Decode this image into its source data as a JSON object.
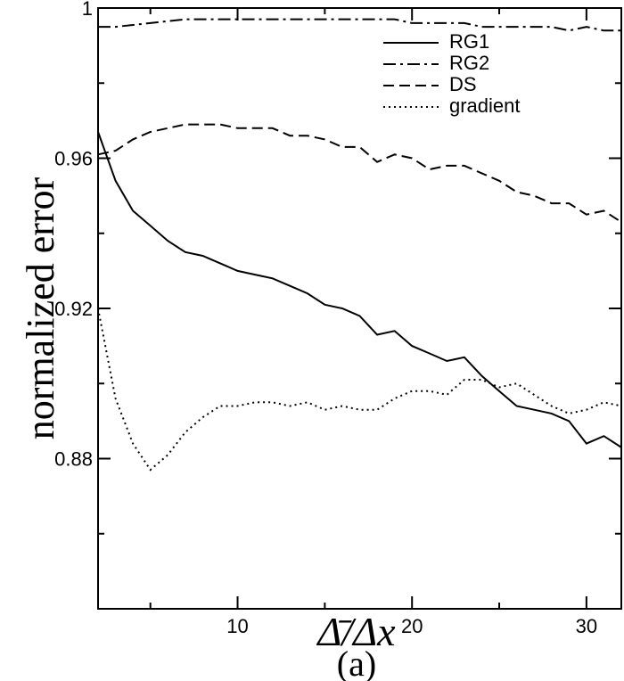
{
  "chart_data": {
    "type": "line",
    "x_label": "Δ̄/Δx",
    "y_label": "normalized error",
    "caption": "(a)",
    "x": [
      2,
      3,
      4,
      5,
      6,
      7,
      8,
      9,
      10,
      11,
      12,
      13,
      14,
      15,
      16,
      17,
      18,
      19,
      20,
      21,
      22,
      23,
      24,
      25,
      26,
      27,
      28,
      29,
      30,
      31,
      32
    ],
    "series": [
      {
        "name": "RG1",
        "color": "#000000",
        "dash": "solid",
        "values": [
          0.967,
          0.954,
          0.946,
          0.942,
          0.938,
          0.935,
          0.934,
          0.932,
          0.93,
          0.929,
          0.928,
          0.926,
          0.924,
          0.921,
          0.92,
          0.918,
          0.913,
          0.914,
          0.91,
          0.908,
          0.906,
          0.907,
          0.902,
          0.898,
          0.894,
          0.893,
          0.892,
          0.89,
          0.884,
          0.886,
          0.883
        ]
      },
      {
        "name": "RG2",
        "color": "#000000",
        "dash": "dashdot",
        "values": [
          0.995,
          0.995,
          0.9955,
          0.996,
          0.9965,
          0.997,
          0.997,
          0.997,
          0.997,
          0.997,
          0.997,
          0.997,
          0.997,
          0.997,
          0.997,
          0.997,
          0.997,
          0.997,
          0.996,
          0.996,
          0.996,
          0.996,
          0.995,
          0.995,
          0.995,
          0.995,
          0.995,
          0.994,
          0.995,
          0.994,
          0.994
        ]
      },
      {
        "name": "DS",
        "color": "#000000",
        "dash": "dashed",
        "values": [
          0.961,
          0.962,
          0.965,
          0.967,
          0.968,
          0.969,
          0.969,
          0.969,
          0.968,
          0.968,
          0.968,
          0.966,
          0.966,
          0.965,
          0.963,
          0.963,
          0.959,
          0.961,
          0.96,
          0.957,
          0.958,
          0.958,
          0.956,
          0.954,
          0.951,
          0.95,
          0.948,
          0.948,
          0.945,
          0.946,
          0.943
        ]
      },
      {
        "name": "gradient",
        "color": "#000000",
        "dash": "dotted",
        "values": [
          0.92,
          0.896,
          0.884,
          0.877,
          0.881,
          0.887,
          0.891,
          0.894,
          0.894,
          0.895,
          0.895,
          0.894,
          0.895,
          0.893,
          0.894,
          0.893,
          0.893,
          0.896,
          0.898,
          0.898,
          0.897,
          0.901,
          0.901,
          0.899,
          0.9,
          0.897,
          0.894,
          0.892,
          0.893,
          0.895,
          0.894
        ]
      }
    ],
    "xlim": [
      2,
      32
    ],
    "ylim": [
      0.84,
      1
    ],
    "xticks": [
      10,
      20,
      30
    ],
    "xminorticks": [
      5,
      15,
      25
    ],
    "yticks": [
      0.88,
      0.92,
      0.96,
      1
    ],
    "yminorticks": [
      0.86,
      0.9,
      0.94,
      0.98
    ],
    "legend": "top-right"
  }
}
